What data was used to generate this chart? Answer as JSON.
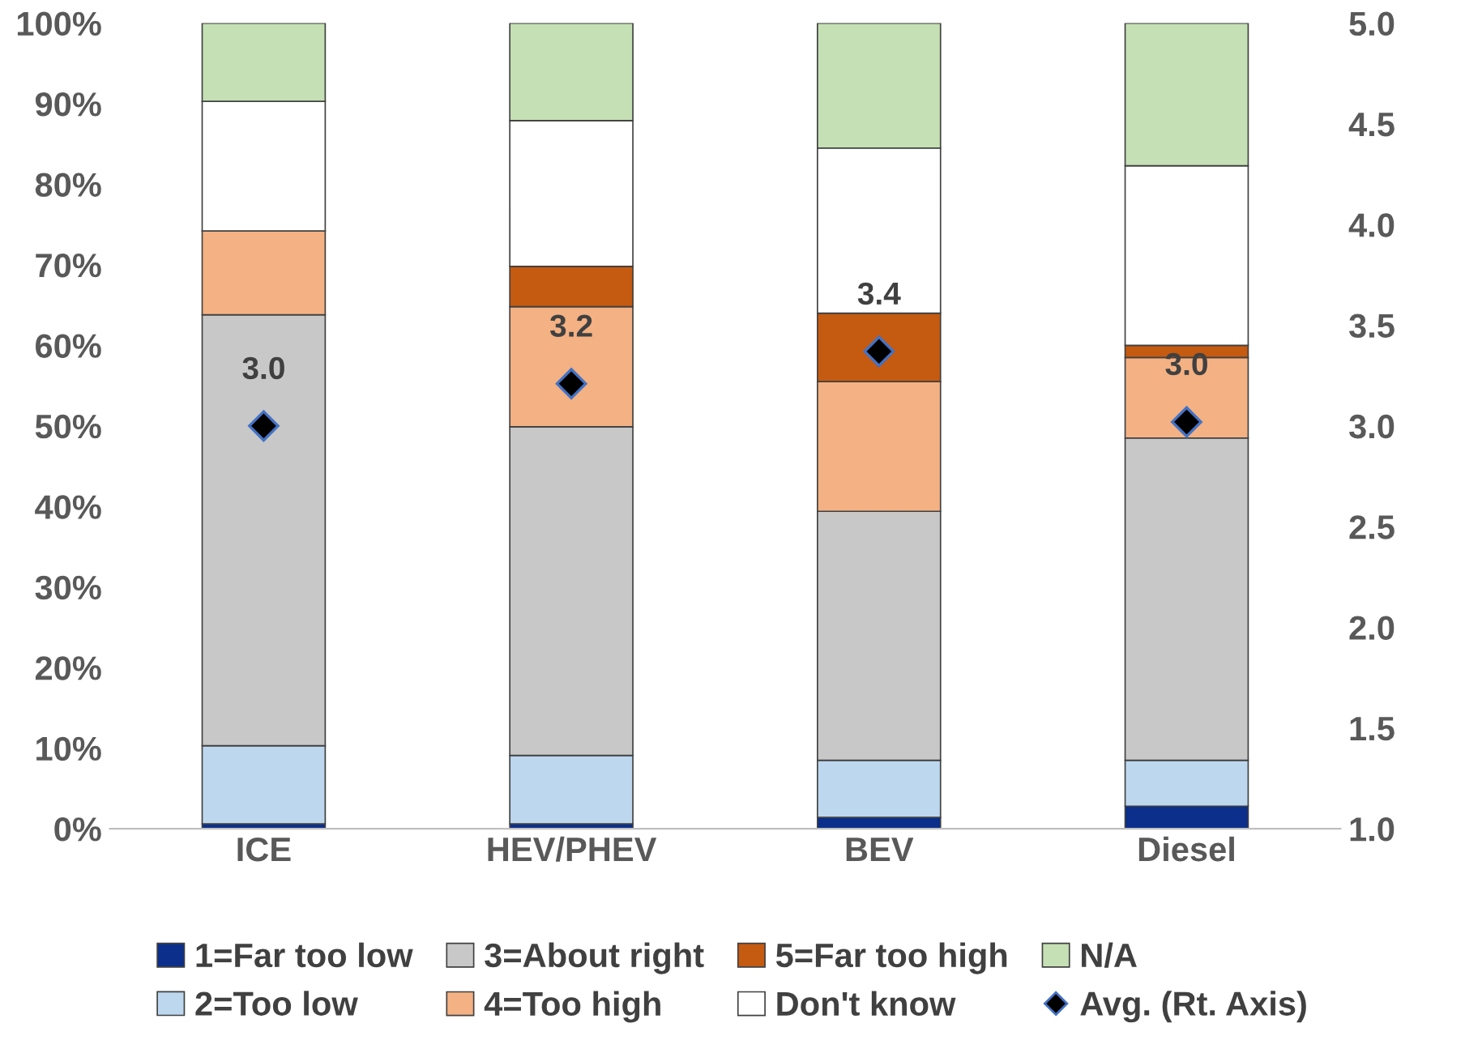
{
  "chart_data": {
    "type": "bar",
    "stacked": true,
    "categories": [
      "ICE",
      "HEV/PHEV",
      "BEV",
      "Diesel"
    ],
    "series": [
      {
        "name": "1=Far too low",
        "color": "#0b2f8a",
        "values": [
          0.6,
          0.6,
          1.4,
          2.8
        ]
      },
      {
        "name": "2=Too low",
        "color": "#bdd7ee",
        "values": [
          9.7,
          8.5,
          7.1,
          5.7
        ]
      },
      {
        "name": "3=About right",
        "color": "#c8c8c8",
        "values": [
          53.5,
          40.8,
          30.9,
          40.0
        ]
      },
      {
        "name": "4=Too high",
        "color": "#f4b183",
        "values": [
          10.4,
          14.9,
          16.1,
          10.0
        ]
      },
      {
        "name": "5=Far too high",
        "color": "#c55a11",
        "values": [
          0,
          5.0,
          8.5,
          1.5
        ]
      },
      {
        "name": "Don't know",
        "color": "#ffffff",
        "values": [
          16.1,
          18.1,
          20.5,
          22.3
        ]
      },
      {
        "name": "N/A",
        "color": "#c5e0b4",
        "values": [
          9.7,
          12.1,
          15.5,
          17.7
        ]
      },
      {
        "name": "Avg. (Rt. Axis)",
        "type": "scatter",
        "axis": "y2",
        "marker": "diamond",
        "color": "#000000",
        "values": [
          3.0,
          3.21,
          3.37,
          3.02
        ],
        "value_labels": [
          "3.0",
          "3.2",
          "3.4",
          "3.0"
        ]
      }
    ],
    "ylim": [
      0,
      100
    ],
    "yticks": [
      {
        "value": 0,
        "label": "0%"
      },
      {
        "value": 10,
        "label": "10%"
      },
      {
        "value": 20,
        "label": "20%"
      },
      {
        "value": 30,
        "label": "30%"
      },
      {
        "value": 40,
        "label": "40%"
      },
      {
        "value": 50,
        "label": "50%"
      },
      {
        "value": 60,
        "label": "60%"
      },
      {
        "value": 70,
        "label": "70%"
      },
      {
        "value": 80,
        "label": "80%"
      },
      {
        "value": 90,
        "label": "90%"
      },
      {
        "value": 100,
        "label": "100%"
      }
    ],
    "y2lim": [
      1.0,
      5.0
    ],
    "y2ticks": [
      {
        "value": 1.0,
        "label": "1.0"
      },
      {
        "value": 1.5,
        "label": "1.5"
      },
      {
        "value": 2.0,
        "label": "2.0"
      },
      {
        "value": 2.5,
        "label": "2.5"
      },
      {
        "value": 3.0,
        "label": "3.0"
      },
      {
        "value": 3.5,
        "label": "3.5"
      },
      {
        "value": 4.0,
        "label": "4.0"
      },
      {
        "value": 4.5,
        "label": "4.5"
      },
      {
        "value": 5.0,
        "label": "5.0"
      }
    ],
    "grid": false,
    "legend": "bottom"
  }
}
